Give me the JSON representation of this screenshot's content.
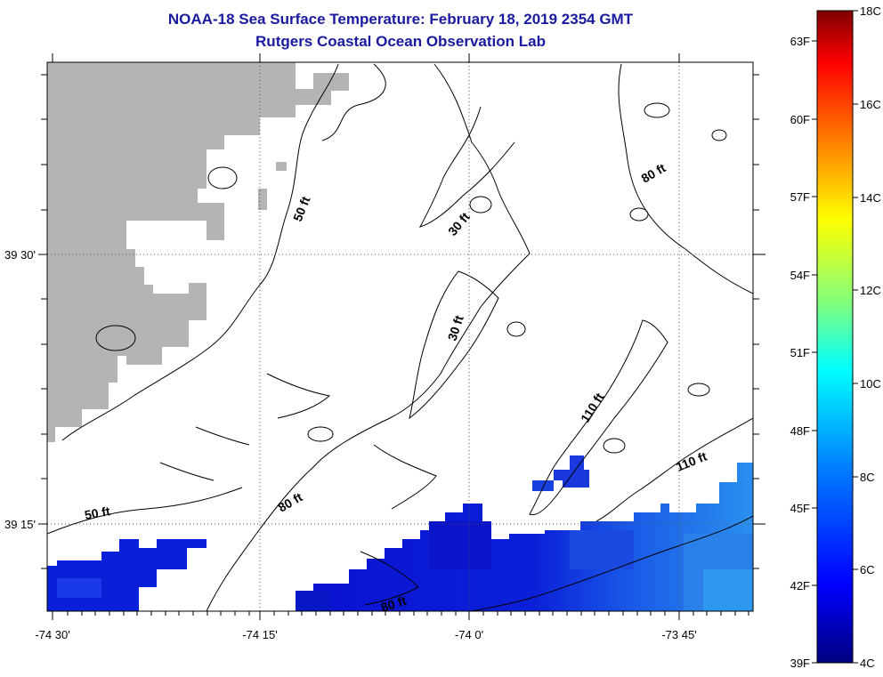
{
  "title": "NOAA-18 Sea Surface Temperature:  February 18, 2019 2354 GMT",
  "subtitle": "Rutgers Coastal Ocean Observation Lab",
  "x_ticks": [
    "-74 30'",
    "-74 15'",
    "-74 0'",
    "-73 45'"
  ],
  "y_ticks": [
    "39 30'",
    "39 15'"
  ],
  "contour_labels": [
    "50 ft",
    "30 ft",
    "80 ft",
    "30 ft",
    "110 ft",
    "110 ft",
    "80 ft",
    "50 ft",
    "80 ft"
  ],
  "colorbar": {
    "fahrenheit": [
      "63F",
      "60F",
      "57F",
      "54F",
      "51F",
      "48F",
      "45F",
      "42F",
      "39F"
    ],
    "celsius": [
      "18C",
      "16C",
      "14C",
      "12C",
      "10C",
      "8C",
      "6C",
      "4C"
    ],
    "colors": [
      "#00007f",
      "#0000ff",
      "#007fff",
      "#00ffff",
      "#7fff7f",
      "#ffff00",
      "#ff7f00",
      "#ff0000",
      "#7f0000"
    ]
  },
  "colors": {
    "land": "#b4b4b4",
    "title": "#1a1aa0",
    "sst_dark": "#1010c8",
    "sst_mid": "#1844e0",
    "sst_light": "#2a8ee8"
  }
}
